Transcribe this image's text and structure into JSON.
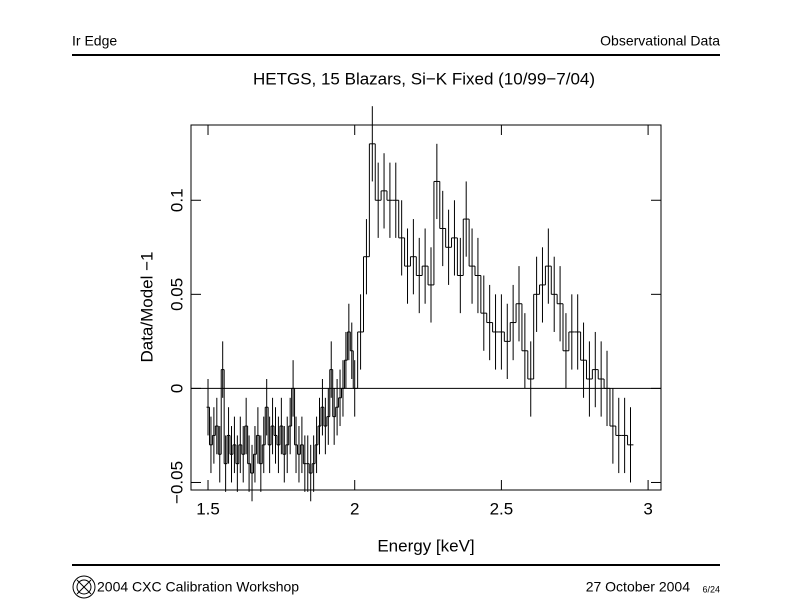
{
  "header": {
    "left": "Ir Edge",
    "right": "Observational Data"
  },
  "footer": {
    "left": "2004 CXC Calibration Workshop",
    "right": "27 October 2004",
    "page": "6/24"
  },
  "chart_data": {
    "type": "step",
    "title": "HETGS, 15 Blazars, Si−K Fixed (10/99−7/04)",
    "xlabel": "Energy [keV]",
    "ylabel": "Data/Model −1",
    "x": [
      1.5,
      1.51,
      1.52,
      1.53,
      1.54,
      1.55,
      1.56,
      1.57,
      1.58,
      1.59,
      1.6,
      1.61,
      1.62,
      1.63,
      1.64,
      1.65,
      1.66,
      1.67,
      1.68,
      1.69,
      1.7,
      1.71,
      1.72,
      1.73,
      1.74,
      1.75,
      1.76,
      1.77,
      1.78,
      1.79,
      1.8,
      1.81,
      1.82,
      1.83,
      1.84,
      1.85,
      1.86,
      1.87,
      1.88,
      1.89,
      1.9,
      1.91,
      1.92,
      1.93,
      1.94,
      1.95,
      1.96,
      1.97,
      1.98,
      1.99,
      2.0,
      2.02,
      2.04,
      2.06,
      2.08,
      2.1,
      2.12,
      2.14,
      2.16,
      2.18,
      2.2,
      2.22,
      2.24,
      2.26,
      2.28,
      2.3,
      2.32,
      2.34,
      2.36,
      2.38,
      2.4,
      2.42,
      2.44,
      2.46,
      2.48,
      2.5,
      2.52,
      2.54,
      2.56,
      2.58,
      2.6,
      2.62,
      2.64,
      2.66,
      2.68,
      2.7,
      2.72,
      2.74,
      2.76,
      2.78,
      2.8,
      2.82,
      2.84,
      2.86,
      2.88,
      2.9,
      2.92,
      2.94
    ],
    "values": [
      -0.01,
      -0.03,
      -0.025,
      -0.02,
      -0.035,
      0.01,
      -0.04,
      -0.025,
      -0.035,
      -0.03,
      -0.04,
      -0.03,
      -0.035,
      -0.02,
      -0.04,
      -0.045,
      -0.035,
      -0.025,
      -0.04,
      -0.03,
      -0.01,
      -0.03,
      -0.02,
      -0.025,
      -0.03,
      -0.02,
      -0.035,
      -0.03,
      -0.02,
      0.0,
      -0.03,
      -0.035,
      -0.03,
      -0.04,
      -0.04,
      -0.045,
      -0.04,
      -0.03,
      -0.02,
      -0.01,
      -0.02,
      -0.015,
      0.01,
      -0.015,
      -0.01,
      -0.005,
      0.0,
      0.015,
      0.03,
      0.02,
      0.0,
      0.03,
      0.07,
      0.13,
      0.1,
      0.105,
      0.1,
      0.1,
      0.08,
      0.065,
      0.07,
      0.06,
      0.065,
      0.055,
      0.11,
      0.085,
      0.075,
      0.08,
      0.06,
      0.09,
      0.065,
      0.06,
      0.04,
      0.035,
      0.03,
      0.03,
      0.025,
      0.035,
      0.045,
      0.02,
      0.005,
      0.05,
      0.055,
      0.065,
      0.05,
      0.045,
      0.02,
      0.03,
      0.03,
      0.015,
      0.005,
      0.01,
      0.005,
      0.0,
      -0.02,
      -0.025,
      -0.025,
      -0.03
    ],
    "errors": [
      0.015,
      0.015,
      0.015,
      0.015,
      0.015,
      0.015,
      0.015,
      0.015,
      0.015,
      0.015,
      0.015,
      0.015,
      0.015,
      0.015,
      0.015,
      0.015,
      0.015,
      0.015,
      0.015,
      0.015,
      0.015,
      0.015,
      0.015,
      0.015,
      0.015,
      0.015,
      0.015,
      0.015,
      0.015,
      0.015,
      0.015,
      0.015,
      0.015,
      0.015,
      0.015,
      0.015,
      0.015,
      0.015,
      0.015,
      0.015,
      0.015,
      0.015,
      0.015,
      0.015,
      0.015,
      0.015,
      0.015,
      0.015,
      0.015,
      0.015,
      0.015,
      0.02,
      0.02,
      0.02,
      0.02,
      0.02,
      0.02,
      0.02,
      0.02,
      0.02,
      0.02,
      0.02,
      0.02,
      0.02,
      0.02,
      0.02,
      0.02,
      0.02,
      0.02,
      0.02,
      0.02,
      0.02,
      0.02,
      0.02,
      0.02,
      0.02,
      0.02,
      0.02,
      0.02,
      0.02,
      0.02,
      0.02,
      0.02,
      0.02,
      0.02,
      0.02,
      0.02,
      0.02,
      0.02,
      0.02,
      0.02,
      0.02,
      0.02,
      0.02,
      0.02,
      0.02,
      0.02,
      0.02
    ],
    "color": "#000000",
    "xlim": [
      1.442,
      3.044
    ],
    "ylim": [
      -0.054,
      0.14
    ],
    "xticks": [
      1.5,
      2,
      2.5,
      3
    ],
    "yticks": [
      {
        "value": -0.05,
        "label": "−0.05"
      },
      0,
      0.05,
      0.1
    ]
  }
}
